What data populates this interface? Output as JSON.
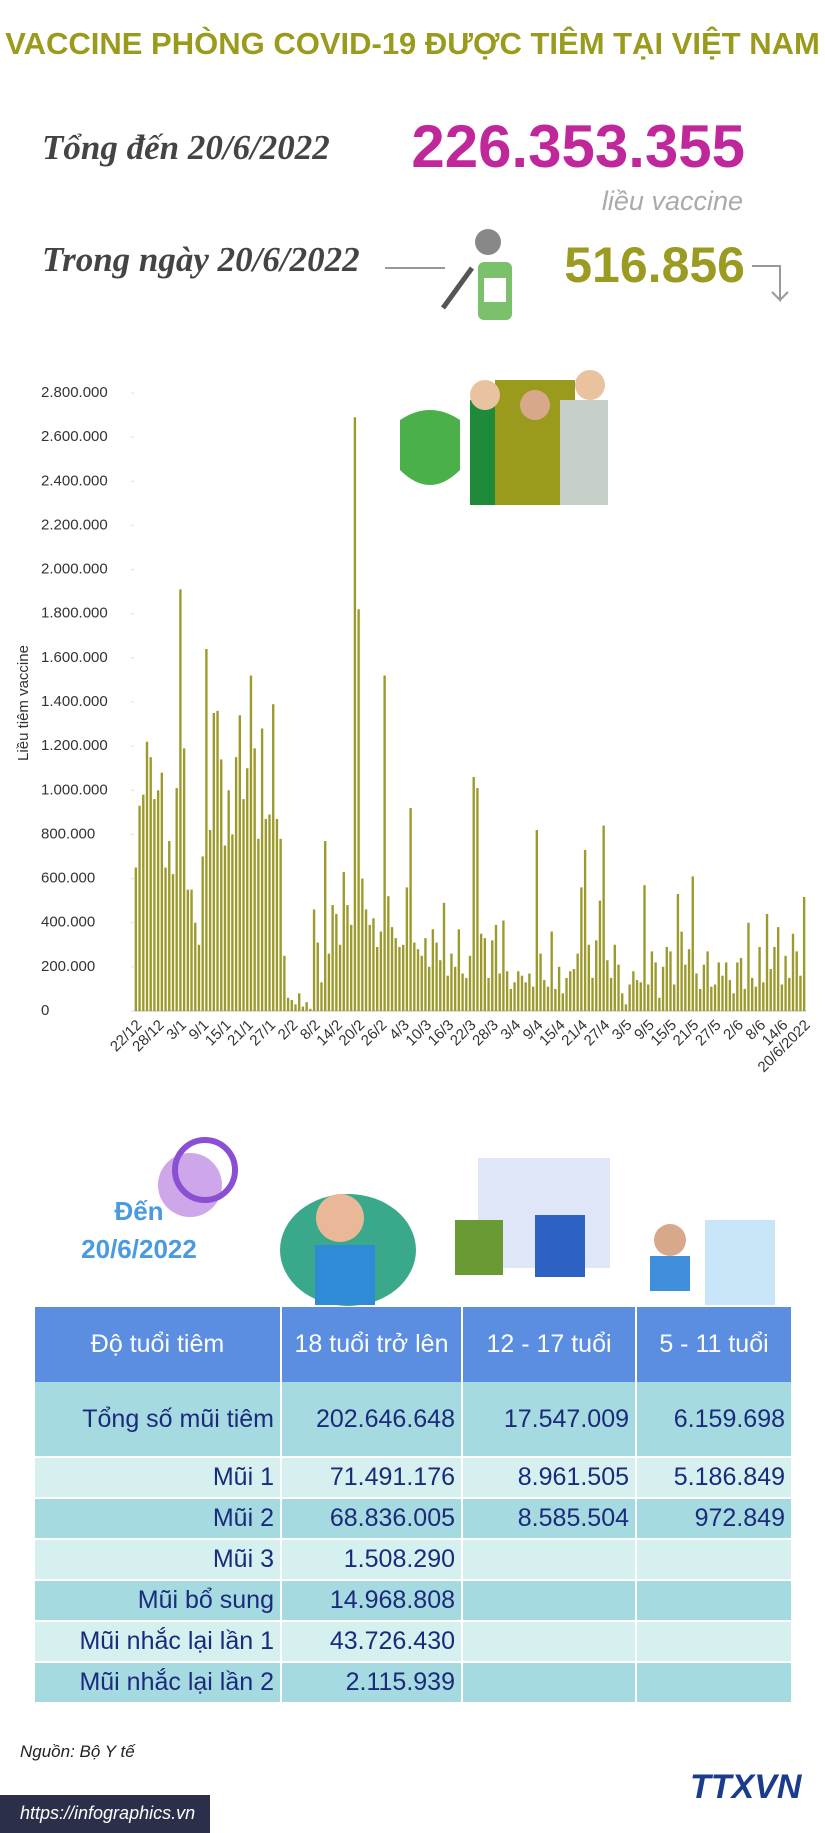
{
  "title": "VACCINE PHÒNG COVID-19 ĐƯỢC TIÊM TẠI VIỆT NAM",
  "summary": {
    "label_total": "Tổng đến 20/6/2022",
    "total": "226.353.355",
    "unit": "liều vaccine",
    "label_day": "Trong ngày 20/6/2022",
    "day": "516.856"
  },
  "chart_data": {
    "type": "bar",
    "y_label": "Liều tiêm vaccine",
    "color": "#9c9a2a",
    "ylim": [
      0,
      2800000
    ],
    "yticks": [
      0,
      {
        "value": 200000,
        "label": "200.000"
      },
      {
        "value": 400000,
        "label": "400.000"
      },
      {
        "value": 600000,
        "label": "600.000"
      },
      {
        "value": 800000,
        "label": "800.000"
      },
      {
        "value": 1000000,
        "label": "1.000.000"
      },
      {
        "value": 1200000,
        "label": "1.200.000"
      },
      {
        "value": 1400000,
        "label": "1.400.000"
      },
      {
        "value": 1600000,
        "label": "1.600.000"
      },
      {
        "value": 1800000,
        "label": "1.800.000"
      },
      {
        "value": 2000000,
        "label": "2.000.000"
      },
      {
        "value": 2200000,
        "label": "2.200.000"
      },
      {
        "value": 2400000,
        "label": "2.400.000"
      },
      {
        "value": 2600000,
        "label": "2.600.000"
      },
      {
        "value": 2800000,
        "label": "2.800.000"
      }
    ],
    "categories": [
      "22/12",
      null,
      null,
      null,
      null,
      null,
      "28/12",
      null,
      null,
      null,
      null,
      null,
      "3/1",
      null,
      null,
      null,
      null,
      null,
      "9/1",
      null,
      null,
      null,
      null,
      null,
      "15/1",
      null,
      null,
      null,
      null,
      null,
      "21/1",
      null,
      null,
      null,
      null,
      null,
      "27/1",
      null,
      null,
      null,
      null,
      null,
      "2/2",
      null,
      null,
      null,
      null,
      null,
      "8/2",
      null,
      null,
      null,
      null,
      null,
      "14/2",
      null,
      null,
      null,
      null,
      null,
      "20/2",
      null,
      null,
      null,
      null,
      null,
      "26/2",
      null,
      null,
      null,
      null,
      null,
      "4/3",
      null,
      null,
      null,
      null,
      null,
      "10/3",
      null,
      null,
      null,
      null,
      null,
      "16/3",
      null,
      null,
      null,
      null,
      null,
      "22/3",
      null,
      null,
      null,
      null,
      null,
      "28/3",
      null,
      null,
      null,
      null,
      null,
      "3/4",
      null,
      null,
      null,
      null,
      null,
      "9/4",
      null,
      null,
      null,
      null,
      null,
      "15/4",
      null,
      null,
      null,
      null,
      null,
      "21/4",
      null,
      null,
      null,
      null,
      null,
      "27/4",
      null,
      null,
      null,
      null,
      null,
      "3/5",
      null,
      null,
      null,
      null,
      null,
      "9/5",
      null,
      null,
      null,
      null,
      null,
      "15/5",
      null,
      null,
      null,
      null,
      null,
      "21/5",
      null,
      null,
      null,
      null,
      null,
      "27/5",
      null,
      null,
      null,
      null,
      null,
      "2/6",
      null,
      null,
      null,
      null,
      null,
      "8/6",
      null,
      null,
      null,
      null,
      null,
      "14/6",
      null,
      null,
      null,
      null,
      null,
      "20/6/2022"
    ],
    "values": [
      650000,
      930000,
      980000,
      1220000,
      1150000,
      960000,
      1000000,
      1080000,
      650000,
      770000,
      620000,
      1010000,
      1910000,
      1190000,
      550000,
      550000,
      400000,
      300000,
      700000,
      1640000,
      820000,
      1350000,
      1360000,
      1140000,
      750000,
      1000000,
      800000,
      1150000,
      1340000,
      960000,
      1100000,
      1520000,
      1190000,
      780000,
      1280000,
      870000,
      890000,
      1390000,
      870000,
      780000,
      250000,
      60000,
      50000,
      30000,
      80000,
      20000,
      40000,
      10000,
      460000,
      310000,
      130000,
      770000,
      260000,
      480000,
      440000,
      300000,
      630000,
      480000,
      390000,
      2690000,
      1820000,
      600000,
      460000,
      390000,
      420000,
      290000,
      360000,
      1520000,
      520000,
      380000,
      330000,
      290000,
      300000,
      560000,
      920000,
      310000,
      280000,
      250000,
      330000,
      200000,
      370000,
      310000,
      230000,
      490000,
      160000,
      260000,
      200000,
      370000,
      170000,
      150000,
      250000,
      1060000,
      1010000,
      350000,
      330000,
      150000,
      320000,
      390000,
      170000,
      410000,
      180000,
      100000,
      130000,
      180000,
      160000,
      130000,
      170000,
      110000,
      820000,
      260000,
      140000,
      110000,
      360000,
      100000,
      200000,
      80000,
      150000,
      180000,
      190000,
      260000,
      560000,
      730000,
      300000,
      150000,
      320000,
      500000,
      840000,
      230000,
      150000,
      300000,
      210000,
      80000,
      30000,
      120000,
      180000,
      140000,
      130000,
      570000,
      120000,
      270000,
      220000,
      60000,
      200000,
      290000,
      270000,
      120000,
      530000,
      360000,
      210000,
      280000,
      610000,
      170000,
      100000,
      210000,
      270000,
      110000,
      120000,
      220000,
      160000,
      220000,
      140000,
      80000,
      220000,
      240000,
      100000,
      400000,
      150000,
      110000,
      290000,
      130000,
      440000,
      190000,
      290000,
      380000,
      120000,
      250000,
      150000,
      350000,
      270000,
      160000,
      516856
    ]
  },
  "table_section": {
    "as_of_label": "Đến",
    "as_of_date": "20/6/2022",
    "header": [
      "Độ tuổi tiêm",
      "18 tuổi trở lên",
      "12 - 17 tuổi",
      "5 - 11 tuổi"
    ],
    "rows": [
      [
        "Tổng số mũi tiêm",
        "202.646.648",
        "17.547.009",
        "6.159.698"
      ],
      [
        "Mũi 1",
        "71.491.176",
        "8.961.505",
        "5.186.849"
      ],
      [
        "Mũi 2",
        "68.836.005",
        "8.585.504",
        "972.849"
      ],
      [
        "Mũi 3",
        "1.508.290",
        null,
        null
      ],
      [
        "Mũi bổ sung",
        "14.968.808",
        null,
        null
      ],
      [
        "Mũi nhắc lại lần 1",
        "43.726.430",
        null,
        null
      ],
      [
        "Mũi nhắc lại lần 2",
        "2.115.939",
        null,
        null
      ]
    ]
  },
  "source": "Nguồn: Bộ Y tế",
  "website": "https://infographics.vn",
  "logo": "TTXVN"
}
